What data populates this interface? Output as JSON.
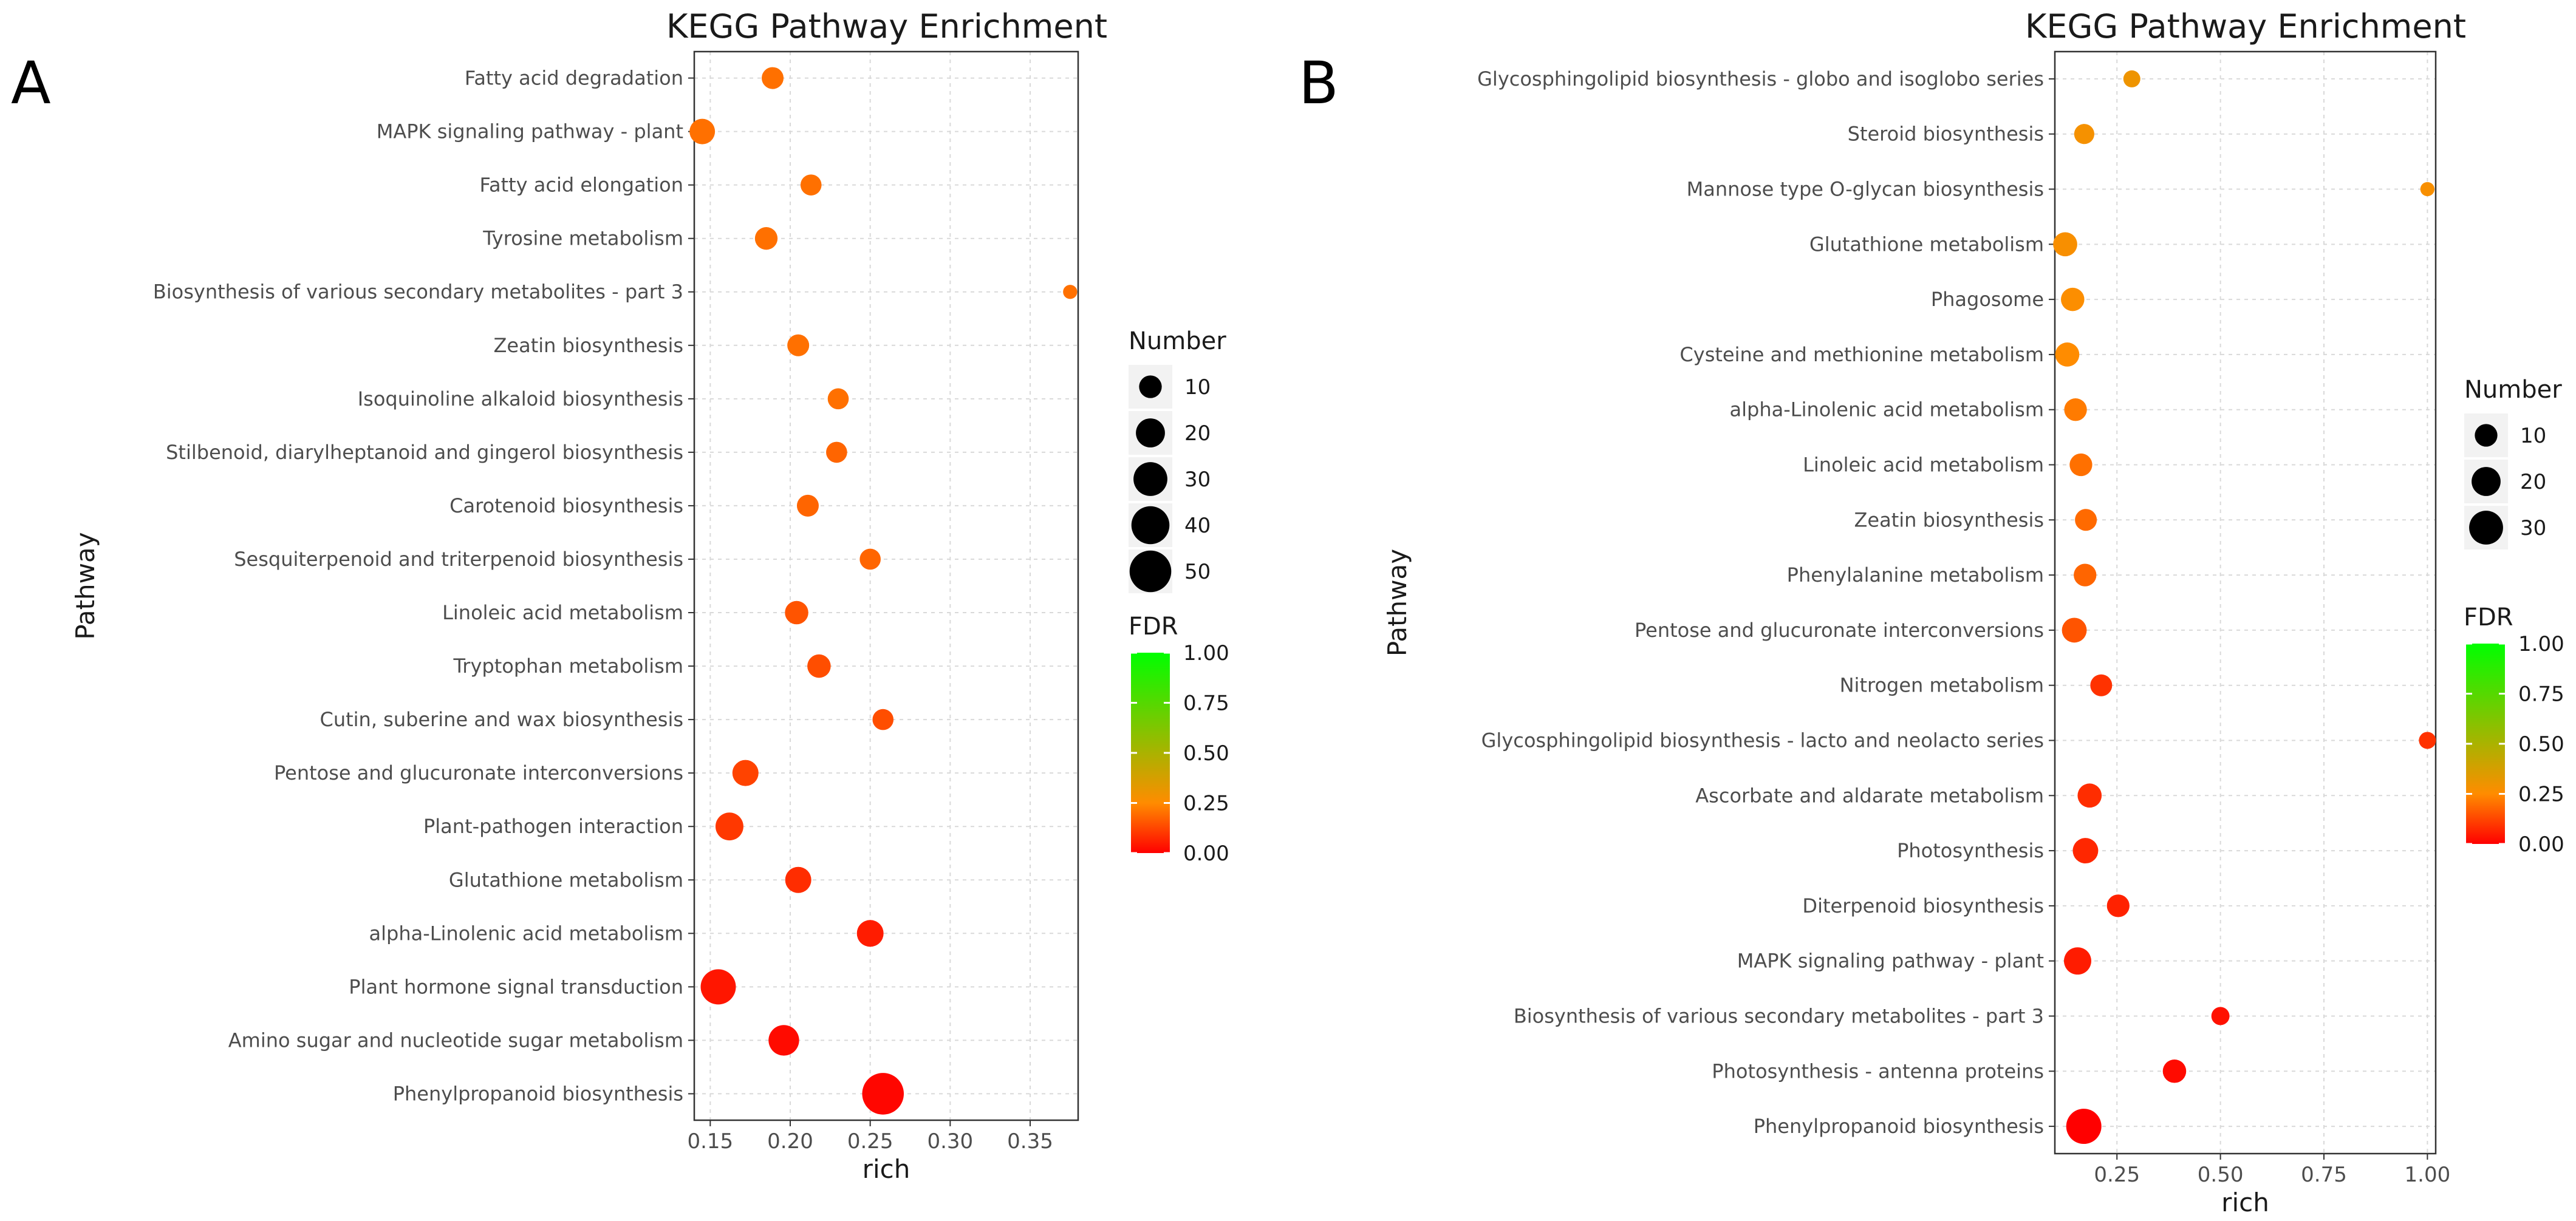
{
  "chart_data": [
    {
      "type": "scatter",
      "panel": "A",
      "title": "KEGG Pathway Enrichment",
      "xlabel": "rich",
      "ylabel": "Pathway",
      "xlim": [
        0.14,
        0.38
      ],
      "xticks": [
        0.15,
        0.2,
        0.25,
        0.3,
        0.35
      ],
      "xtick_labels": [
        "0.15",
        "0.20",
        "0.25",
        "0.30",
        "0.35"
      ],
      "categories": [
        "Fatty acid degradation",
        "MAPK signaling pathway - plant",
        "Fatty acid elongation",
        "Tyrosine metabolism",
        "Biosynthesis of various secondary metabolites - part 3",
        "Zeatin biosynthesis",
        "Isoquinoline alkaloid biosynthesis",
        "Stilbenoid, diarylheptanoid and gingerol biosynthesis",
        "Carotenoid biosynthesis",
        "Sesquiterpenoid and triterpenoid biosynthesis",
        "Linoleic acid metabolism",
        "Tryptophan metabolism",
        "Cutin, suberine and wax biosynthesis",
        "Pentose and glucuronate interconversions",
        "Plant-pathogen interaction",
        "Glutathione metabolism",
        "alpha-Linolenic acid metabolism",
        "Plant hormone signal transduction",
        "Amino sugar and nucleotide sugar metabolism",
        "Phenylpropanoid biosynthesis"
      ],
      "rich": [
        0.189,
        0.145,
        0.213,
        0.185,
        0.375,
        0.205,
        0.23,
        0.229,
        0.211,
        0.25,
        0.204,
        0.218,
        0.258,
        0.172,
        0.162,
        0.205,
        0.25,
        0.155,
        0.196,
        0.258
      ],
      "number": [
        9,
        14,
        8,
        10,
        2,
        9,
        8,
        8,
        9,
        8,
        11,
        11,
        8,
        15,
        18,
        15,
        16,
        33,
        23,
        50
      ],
      "fdr": [
        0.2,
        0.2,
        0.2,
        0.2,
        0.2,
        0.2,
        0.2,
        0.18,
        0.18,
        0.18,
        0.15,
        0.14,
        0.14,
        0.12,
        0.1,
        0.08,
        0.05,
        0.04,
        0.02,
        0.01
      ],
      "size_legend": {
        "title": "Number",
        "values": [
          10,
          20,
          30,
          40,
          50
        ],
        "labels": [
          "10",
          "20",
          "30",
          "40",
          "50"
        ]
      },
      "color_legend": {
        "title": "FDR",
        "range": [
          0,
          1
        ],
        "ticks": [
          "1.00",
          "0.75",
          "0.50",
          "0.25",
          "0.00"
        ],
        "colors": [
          "#ff0000",
          "#ff8c00",
          "#00ff00"
        ]
      },
      "grid": true
    },
    {
      "type": "scatter",
      "panel": "B",
      "title": "KEGG Pathway Enrichment",
      "xlabel": "rich",
      "ylabel": "Pathway",
      "xlim": [
        0.1,
        1.02
      ],
      "xticks": [
        0.25,
        0.5,
        0.75,
        1.0
      ],
      "xtick_labels": [
        "0.25",
        "0.50",
        "0.75",
        "1.00"
      ],
      "categories": [
        "Glycosphingolipid biosynthesis - globo and isoglobo series",
        "Steroid biosynthesis",
        "Mannose type O-glycan biosynthesis",
        "Glutathione metabolism",
        "Phagosome",
        "Cysteine and methionine metabolism",
        "alpha-Linolenic acid metabolism",
        "Linoleic acid metabolism",
        "Zeatin biosynthesis",
        "Phenylalanine metabolism",
        "Pentose and glucuronate interconversions",
        "Nitrogen metabolism",
        "Glycosphingolipid biosynthesis - lacto and neolacto series",
        "Ascorbate and aldarate metabolism",
        "Photosynthesis",
        "Diterpenoid biosynthesis",
        "MAPK signaling pathway - plant",
        "Biosynthesis of various secondary metabolites - part 3",
        "Photosynthesis - antenna proteins",
        "Phenylpropanoid biosynthesis"
      ],
      "rich": [
        0.286,
        0.171,
        1.0,
        0.125,
        0.143,
        0.13,
        0.15,
        0.163,
        0.175,
        0.173,
        0.147,
        0.212,
        1.0,
        0.184,
        0.174,
        0.253,
        0.155,
        0.5,
        0.389,
        0.17
      ],
      "number": [
        4,
        7,
        2,
        12,
        11,
        12,
        10,
        10,
        9,
        10,
        13,
        9,
        4,
        12,
        14,
        10,
        17,
        5,
        11,
        33
      ],
      "fdr": [
        0.3,
        0.28,
        0.27,
        0.27,
        0.26,
        0.25,
        0.22,
        0.2,
        0.19,
        0.18,
        0.15,
        0.09,
        0.09,
        0.08,
        0.07,
        0.06,
        0.05,
        0.03,
        0.02,
        0.0
      ],
      "size_legend": {
        "title": "Number",
        "values": [
          10,
          20,
          30
        ],
        "labels": [
          "10",
          "20",
          "30"
        ]
      },
      "color_legend": {
        "title": "FDR",
        "range": [
          0,
          1
        ],
        "ticks": [
          "1.00",
          "0.75",
          "0.50",
          "0.25",
          "0.00"
        ],
        "colors": [
          "#ff0000",
          "#ff8c00",
          "#00ff00"
        ]
      },
      "grid": true
    }
  ]
}
